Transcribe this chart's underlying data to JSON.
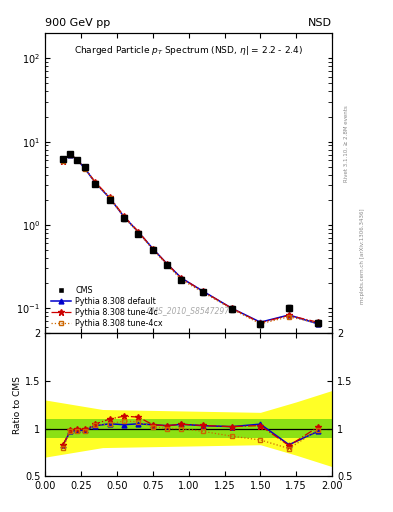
{
  "title_top_left": "900 GeV pp",
  "title_top_right": "NSD",
  "plot_title": "Charged Particle p_{T} Spectrum (NSD, |\\eta| = 2.2 - 2.4)",
  "ylabel_ratio": "Ratio to CMS",
  "right_label_top": "Rivet 3.1.10, ≥ 2.8M events",
  "right_label_bot": "mcplots.cern.ch [arXiv:1306.3436]",
  "watermark": "CMS_2010_S8547297",
  "cms_pt_x": [
    0.125,
    0.175,
    0.225,
    0.275,
    0.35,
    0.45,
    0.55,
    0.65,
    0.75,
    0.85,
    0.95,
    1.1,
    1.3,
    1.5,
    1.7,
    1.9
  ],
  "cms_pt_y": [
    6.2,
    7.2,
    6.1,
    4.9,
    3.1,
    2.0,
    1.2,
    0.78,
    0.5,
    0.33,
    0.22,
    0.155,
    0.098,
    0.065,
    0.1,
    0.067
  ],
  "cms_yerr": [
    0.4,
    0.4,
    0.35,
    0.28,
    0.18,
    0.12,
    0.07,
    0.05,
    0.03,
    0.02,
    0.015,
    0.01,
    0.007,
    0.005,
    0.008,
    0.005
  ],
  "pythia_default_y": [
    6.0,
    7.0,
    6.0,
    4.8,
    3.2,
    2.1,
    1.25,
    0.82,
    0.52,
    0.34,
    0.23,
    0.16,
    0.1,
    0.068,
    0.083,
    0.065
  ],
  "pythia_4c_y": [
    5.9,
    7.1,
    6.05,
    4.85,
    3.25,
    2.15,
    1.27,
    0.83,
    0.52,
    0.34,
    0.23,
    0.16,
    0.1,
    0.067,
    0.082,
    0.068
  ],
  "pythia_4cx_y": [
    5.8,
    7.0,
    5.95,
    4.75,
    3.2,
    2.1,
    1.23,
    0.8,
    0.51,
    0.33,
    0.22,
    0.155,
    0.098,
    0.065,
    0.079,
    0.066
  ],
  "ratio_default": [
    0.83,
    0.97,
    0.98,
    0.98,
    1.03,
    1.05,
    1.04,
    1.05,
    1.04,
    1.03,
    1.045,
    1.03,
    1.02,
    1.046,
    0.83,
    0.97
  ],
  "ratio_4c": [
    0.83,
    0.985,
    0.992,
    0.99,
    1.048,
    1.1,
    1.13,
    1.12,
    1.04,
    1.03,
    1.045,
    1.032,
    1.02,
    1.031,
    0.82,
    1.015
  ],
  "ratio_4cx": [
    0.8,
    0.972,
    0.975,
    0.969,
    1.032,
    1.05,
    1.08,
    1.07,
    1.02,
    1.0,
    1.0,
    0.97,
    0.92,
    0.88,
    0.79,
    0.985
  ],
  "color_cms": "#000000",
  "color_default": "#0000cc",
  "color_4c": "#cc0000",
  "color_4cx": "#cc6600",
  "xlim": [
    0.0,
    2.0
  ],
  "ylim_main": [
    0.05,
    200
  ],
  "ylim_ratio": [
    0.5,
    2.0
  ],
  "yticks_ratio": [
    0.5,
    1.0,
    1.5,
    2.0
  ],
  "ytick_labels_ratio": [
    "0.5",
    "1",
    "1.5",
    "2"
  ]
}
